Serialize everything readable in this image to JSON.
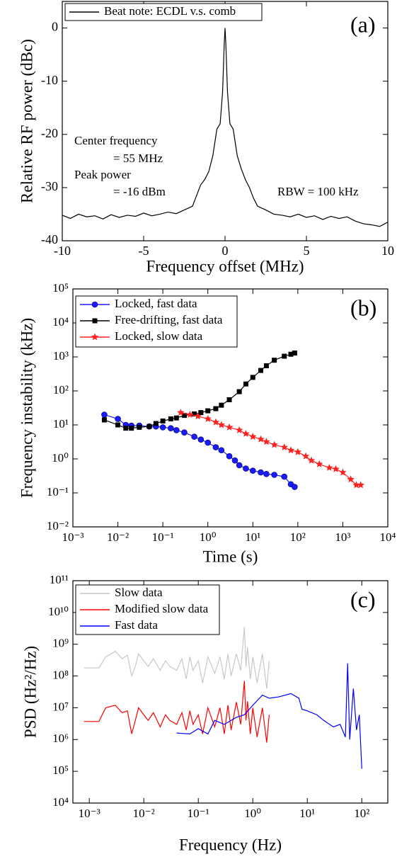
{
  "chart_data": [
    {
      "type": "line",
      "x_label": "Frequency offset (MHz)",
      "y_label": "Relative RF power (dBc)",
      "panel_label": "(a)",
      "x": [
        -10,
        -9.5,
        -9,
        -8.5,
        -8,
        -7.5,
        -7,
        -6.5,
        -6,
        -5.5,
        -5,
        -4.5,
        -4,
        -3.5,
        -3,
        -2.5,
        -2,
        -1.75,
        -1.5,
        -1.25,
        -1,
        -0.75,
        -0.5,
        -0.3,
        -0.15,
        -0.05,
        0,
        0.05,
        0.15,
        0.3,
        0.5,
        0.75,
        1,
        1.25,
        1.5,
        1.75,
        2,
        2.5,
        3,
        3.5,
        4,
        4.5,
        5,
        5.5,
        6,
        6.5,
        7,
        7.5,
        8,
        8.5,
        9,
        9.5,
        10
      ],
      "series": [
        {
          "name": "Beat note: ECDL v.s. comb",
          "color": "#000000",
          "values": [
            -35.2,
            -35.8,
            -35.0,
            -35.5,
            -35.3,
            -35.9,
            -35.1,
            -35.6,
            -35.2,
            -35.4,
            -34.8,
            -35.3,
            -35.0,
            -34.6,
            -34.9,
            -34.2,
            -33.5,
            -31.5,
            -29.5,
            -28.5,
            -27,
            -24,
            -19,
            -18,
            -12,
            -3,
            0,
            -3,
            -12,
            -18,
            -19,
            -24,
            -26.5,
            -28.5,
            -30,
            -32,
            -33.5,
            -34.2,
            -35,
            -35.2,
            -35.5,
            -35.0,
            -35.6,
            -35.3,
            -36,
            -35.4,
            -35.8,
            -35.5,
            -36.3,
            -36.8,
            -37,
            -37.3,
            -36.5
          ]
        }
      ],
      "annotations": [
        "Center frequency",
        "= 55 MHz",
        "Peak power",
        "= -16 dBm",
        "RBW = 100 kHz"
      ],
      "xlim": [
        -10,
        10
      ],
      "xticks": [
        -10,
        -5,
        0,
        5,
        10
      ],
      "ylim": [
        -40,
        5
      ],
      "yticks": [
        -40,
        -30,
        -20,
        -10,
        0
      ],
      "legend": "upper left"
    },
    {
      "type": "line",
      "x_label": "Time (s)",
      "y_label": "Frequency instability (kHz)",
      "panel_label": "(b)",
      "xlog": true,
      "ylog": true,
      "series": [
        {
          "name": "Locked, fast data",
          "color": "#1a1aff",
          "marker": "circle",
          "x": [
            0.005,
            0.01,
            0.015,
            0.02,
            0.03,
            0.05,
            0.07,
            0.1,
            0.15,
            0.2,
            0.3,
            0.5,
            0.7,
            1,
            1.5,
            2,
            3,
            4,
            5,
            7,
            10,
            15,
            20,
            30,
            50,
            70,
            85
          ],
          "values": [
            20,
            15,
            10,
            9.5,
            9.5,
            9,
            9,
            8.5,
            8,
            7,
            6,
            4.5,
            3.7,
            3,
            2.2,
            1.8,
            1.2,
            0.9,
            0.65,
            0.52,
            0.45,
            0.4,
            0.36,
            0.34,
            0.3,
            0.18,
            0.15
          ]
        },
        {
          "name": "Free-drifting, fast data",
          "color": "#000000",
          "marker": "square",
          "x": [
            0.005,
            0.01,
            0.015,
            0.02,
            0.03,
            0.05,
            0.07,
            0.1,
            0.15,
            0.2,
            0.3,
            0.5,
            0.7,
            1,
            1.5,
            2,
            3,
            5,
            7,
            10,
            15,
            20,
            30,
            50,
            70,
            85
          ],
          "values": [
            14,
            10,
            8,
            8,
            8.5,
            9,
            11,
            13,
            15,
            16,
            19,
            21,
            23,
            26,
            30,
            38,
            55,
            95,
            160,
            250,
            400,
            550,
            800,
            1050,
            1200,
            1300
          ]
        },
        {
          "name": "Locked, slow data",
          "color": "#ff2020",
          "marker": "star",
          "x": [
            0.25,
            0.4,
            0.6,
            1,
            1.5,
            2,
            3,
            5,
            7,
            10,
            15,
            20,
            30,
            50,
            70,
            100,
            150,
            200,
            300,
            500,
            700,
            1000,
            1500,
            2000,
            2500
          ],
          "values": [
            23,
            20,
            18,
            15,
            12,
            10,
            8.5,
            7,
            5.5,
            4.5,
            3.8,
            3.2,
            2.6,
            2.2,
            1.8,
            1.6,
            1.2,
            0.9,
            0.7,
            0.55,
            0.5,
            0.4,
            0.25,
            0.17,
            0.17
          ]
        }
      ],
      "xlim": [
        0.001,
        10000
      ],
      "xticks": [
        {
          "value": 0.001,
          "label": "10⁻³"
        },
        {
          "value": 0.01,
          "label": "10⁻²"
        },
        {
          "value": 0.1,
          "label": "10⁻¹"
        },
        {
          "value": 1,
          "label": "10⁰"
        },
        {
          "value": 10,
          "label": "10¹"
        },
        {
          "value": 100,
          "label": "10²"
        },
        {
          "value": 1000,
          "label": "10³"
        },
        {
          "value": 10000,
          "label": "10⁴"
        }
      ],
      "ylim": [
        0.01,
        100000
      ],
      "yticks": [
        {
          "value": 0.01,
          "label": "10⁻²"
        },
        {
          "value": 0.1,
          "label": "10⁻¹"
        },
        {
          "value": 1,
          "label": "10⁰"
        },
        {
          "value": 10,
          "label": "10¹"
        },
        {
          "value": 100,
          "label": "10²"
        },
        {
          "value": 1000,
          "label": "10³"
        },
        {
          "value": 10000,
          "label": "10⁴"
        },
        {
          "value": 100000,
          "label": "10⁵"
        }
      ],
      "legend": "upper left"
    },
    {
      "type": "line",
      "x_label": "Frequency (Hz)",
      "y_label": "PSD (Hz²/Hz)",
      "panel_label": "(c)",
      "xlog": true,
      "ylog": true,
      "series": [
        {
          "name": "Slow data",
          "color": "#c8c8c8",
          "x": [
            0.0008,
            0.0015,
            0.002,
            0.003,
            0.004,
            0.005,
            0.006,
            0.007,
            0.008,
            0.01,
            0.012,
            0.015,
            0.02,
            0.025,
            0.03,
            0.04,
            0.05,
            0.06,
            0.07,
            0.08,
            0.1,
            0.12,
            0.15,
            0.2,
            0.25,
            0.3,
            0.35,
            0.4,
            0.5,
            0.6,
            0.7,
            0.75,
            0.8,
            0.9,
            1,
            1.2,
            1.5,
            1.8,
            2
          ],
          "values": [
            180000000.0,
            180000000.0,
            400000000.0,
            600000000.0,
            350000000.0,
            450000000.0,
            100000000.0,
            200000000.0,
            500000000.0,
            300000000.0,
            200000000.0,
            350000000.0,
            150000000.0,
            300000000.0,
            200000000.0,
            150000000.0,
            350000000.0,
            80000000.0,
            400000000.0,
            150000000.0,
            300000000.0,
            60000000.0,
            400000000.0,
            120000000.0,
            400000000.0,
            80000000.0,
            500000000.0,
            100000000.0,
            500000000.0,
            150000000.0,
            3500000000.0,
            200000000.0,
            800000000.0,
            80000000.0,
            400000000.0,
            60000000.0,
            500000000.0,
            40000000.0,
            300000000.0
          ]
        },
        {
          "name": "Modified slow data",
          "color": "#ff0000",
          "x": [
            0.0008,
            0.0015,
            0.002,
            0.003,
            0.004,
            0.005,
            0.006,
            0.007,
            0.008,
            0.01,
            0.012,
            0.015,
            0.02,
            0.025,
            0.03,
            0.04,
            0.05,
            0.06,
            0.07,
            0.08,
            0.1,
            0.12,
            0.15,
            0.2,
            0.25,
            0.3,
            0.35,
            0.4,
            0.5,
            0.6,
            0.7,
            0.75,
            0.8,
            0.9,
            1,
            1.2,
            1.5,
            1.8,
            2
          ],
          "values": [
            3700000.0,
            3700000.0,
            10000000.0,
            12000000.0,
            7000000.0,
            8000000.0,
            1500000.0,
            4000000.0,
            10000000.0,
            6000000.0,
            4000000.0,
            7000000.0,
            2500000.0,
            6000000.0,
            4000000.0,
            3000000.0,
            7000000.0,
            2000000.0,
            8000000.0,
            3000000.0,
            6000000.0,
            1500000.0,
            10000000.0,
            2500000.0,
            10000000.0,
            1500000.0,
            12000000.0,
            2000000.0,
            15000000.0,
            3000000.0,
            70000000.0,
            4000000.0,
            16000000.0,
            1500000.0,
            10000000.0,
            1200000.0,
            10000000.0,
            800000.0,
            6000000.0
          ]
        },
        {
          "name": "Fast data",
          "color": "#0000ff",
          "x": [
            0.04,
            0.07,
            0.1,
            0.15,
            0.2,
            0.3,
            0.5,
            0.7,
            1,
            1.5,
            2,
            3,
            5,
            7,
            8,
            10,
            15,
            20,
            30,
            40,
            50,
            55,
            60,
            70,
            80,
            90,
            100
          ],
          "values": [
            1600000.0,
            1500000.0,
            2200000.0,
            1500000.0,
            4000000.0,
            3000000.0,
            5000000.0,
            6000000.0,
            12000000.0,
            25000000.0,
            20000000.0,
            22000000.0,
            28000000.0,
            20000000.0,
            9000000.0,
            8000000.0,
            6000000.0,
            4000000.0,
            2500000.0,
            3000000.0,
            1200000.0,
            250000000.0,
            1000000.0,
            40000000.0,
            2000000.0,
            6000000.0,
            120000.0
          ]
        }
      ],
      "xlim": [
        0.0005,
        300
      ],
      "xticks": [
        {
          "value": 0.001,
          "label": "10⁻³"
        },
        {
          "value": 0.01,
          "label": "10⁻²"
        },
        {
          "value": 0.1,
          "label": "10⁻¹"
        },
        {
          "value": 1,
          "label": "10⁰"
        },
        {
          "value": 10,
          "label": "10¹"
        },
        {
          "value": 100,
          "label": "10²"
        }
      ],
      "ylim": [
        10000,
        100000000000
      ],
      "yticks": [
        {
          "value": 10000,
          "label": "10⁴"
        },
        {
          "value": 100000,
          "label": "10⁵"
        },
        {
          "value": 1000000,
          "label": "10⁶"
        },
        {
          "value": 10000000,
          "label": "10⁷"
        },
        {
          "value": 100000000,
          "label": "10⁸"
        },
        {
          "value": 1000000000,
          "label": "10⁹"
        },
        {
          "value": 10000000000,
          "label": "10¹⁰"
        },
        {
          "value": 100000000000,
          "label": "10¹¹"
        }
      ],
      "legend": "upper left"
    }
  ]
}
